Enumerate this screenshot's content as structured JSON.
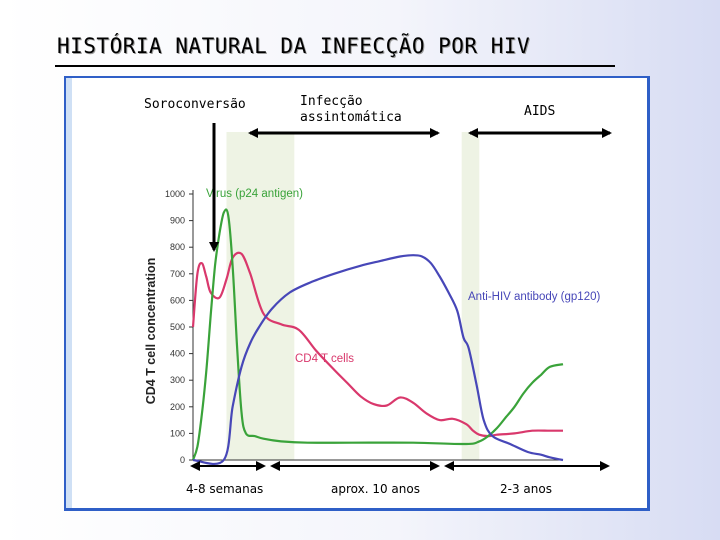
{
  "slide": {
    "title": "HISTÓRIA NATURAL DA INFECÇÃO POR HIV"
  },
  "phases": {
    "seroconversion": "Soroconversão",
    "asymptomatic_line1": "Infecção",
    "asymptomatic_line2": "assintomática",
    "aids": "AIDS"
  },
  "durations": {
    "early": "4-8 semanas",
    "middle": "aprox. 10 anos",
    "late": "2-3 anos"
  },
  "colors": {
    "frame": "#2f5fc7",
    "cd4": "#d9386c",
    "virus": "#3aa33a",
    "antibody": "#4747b8",
    "shade": "#eef3e4"
  },
  "chart_data": {
    "type": "line",
    "ylabel": "CD4 T cell concentration",
    "ylim": [
      0,
      1000
    ],
    "yticks": [
      0,
      100,
      200,
      300,
      400,
      500,
      600,
      700,
      800,
      900,
      1000
    ],
    "x_unit": "relative time (no numeric axis)",
    "series": [
      {
        "name": "CD4 T cells",
        "color": "#d9386c",
        "x": [
          0,
          0.5,
          1,
          1.5,
          2,
          3,
          3.8,
          4.5,
          5.5,
          6.5,
          8,
          10,
          12,
          14,
          16,
          17.5,
          19,
          20.5,
          22,
          23.5,
          25,
          26.5,
          28,
          29.5,
          31,
          31.8,
          32.5,
          33.5,
          34.5,
          36.5,
          38.5,
          40.5,
          42
        ],
        "y": [
          500,
          700,
          740,
          690,
          630,
          610,
          680,
          760,
          775,
          700,
          550,
          510,
          490,
          410,
          340,
          290,
          240,
          210,
          205,
          235,
          215,
          175,
          150,
          155,
          135,
          110,
          95,
          90,
          95,
          100,
          110,
          110,
          110
        ]
      },
      {
        "name": "Virus (p24 antigen)",
        "color": "#3aa33a",
        "x": [
          0,
          0.5,
          1,
          1.5,
          2,
          2.5,
          3,
          3.5,
          4,
          4.5,
          5,
          5.5,
          6,
          7,
          8,
          10,
          13,
          18,
          25,
          31,
          32.5,
          33.5,
          34.5,
          35.5,
          36.5,
          37.5,
          38.5,
          39.5,
          40.5,
          42
        ],
        "y": [
          0,
          50,
          170,
          330,
          540,
          730,
          850,
          930,
          920,
          730,
          430,
          180,
          100,
          90,
          80,
          70,
          65,
          65,
          65,
          60,
          70,
          90,
          120,
          160,
          200,
          250,
          290,
          320,
          350,
          360
        ]
      },
      {
        "name": "Anti-HIV antibody (gp120)",
        "color": "#4747b8",
        "x": [
          0,
          3.5,
          4.5,
          5.5,
          6.5,
          7.5,
          9,
          11,
          13.5,
          16,
          19,
          21.5,
          23.5,
          25,
          26,
          27,
          28,
          29,
          30,
          30.7,
          31.3,
          32.2,
          33,
          34,
          36,
          38,
          39.5,
          40.5,
          42
        ],
        "y": [
          0,
          0,
          200,
          350,
          440,
          500,
          570,
          630,
          670,
          700,
          730,
          750,
          765,
          770,
          765,
          740,
          690,
          630,
          560,
          460,
          420,
          280,
          150,
          90,
          60,
          30,
          20,
          10,
          0
        ]
      }
    ],
    "shaded_regions": [
      [
        3.8,
        11.5
      ],
      [
        30.5,
        32.5
      ]
    ],
    "annotations": [
      {
        "text": "Virus (p24 antigen)",
        "series": "Virus (p24 antigen)"
      },
      {
        "text": "CD4 T cells",
        "series": "CD4 T cells"
      },
      {
        "text": "Anti-HIV antibody (gp120)",
        "series": "Anti-HIV antibody (gp120)"
      }
    ],
    "grid": false
  }
}
